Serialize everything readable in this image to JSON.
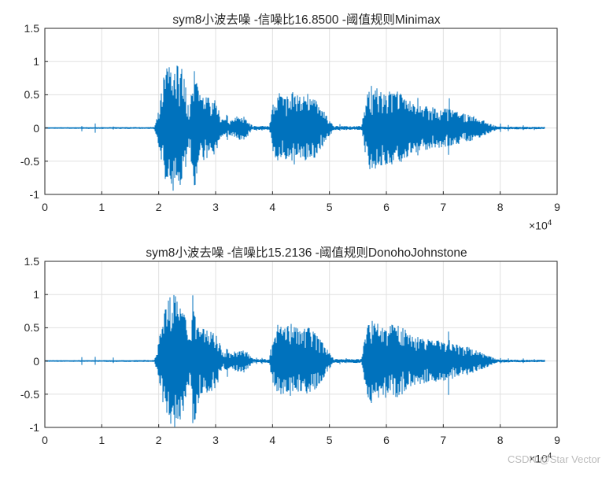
{
  "figure": {
    "background": "#ffffff",
    "watermark": {
      "text": "CSDN @Star Vector",
      "color": "#bcbcbc"
    }
  },
  "chart_data": [
    {
      "type": "line",
      "subtype": "audio-waveform",
      "title": "sym8小波去噪 -信噪比16.8500 -阈值规则Minimax",
      "wavelet": "sym8",
      "snr": "16.8500",
      "threshold_rule": "Minimax",
      "line_color": "#0072BD",
      "grid_color": "#e0e0e0",
      "axis_color": "#262626",
      "xlim": [
        0,
        90000
      ],
      "ylim": [
        -1,
        1.5
      ],
      "x_ticks": [
        "0",
        "1",
        "2",
        "3",
        "4",
        "5",
        "6",
        "7",
        "8",
        "9"
      ],
      "x_tick_values": [
        0,
        1,
        2,
        3,
        4,
        5,
        6,
        7,
        8,
        9
      ],
      "y_ticks": [
        "-1",
        "-0.5",
        "0",
        "0.5",
        "1",
        "1.5"
      ],
      "y_tick_values": [
        -1,
        -0.5,
        0,
        0.5,
        1,
        1.5
      ],
      "x_multiplier": "×10",
      "x_multiplier_exp": "4",
      "grid": true,
      "seed": 11,
      "signal_end": 8.78,
      "envelope": [
        [
          0,
          0.012
        ],
        [
          1.92,
          0.015
        ],
        [
          1.96,
          0.12
        ],
        [
          2.0,
          0.3
        ],
        [
          2.05,
          0.55
        ],
        [
          2.1,
          0.85
        ],
        [
          2.18,
          0.95
        ],
        [
          2.28,
          1.0
        ],
        [
          2.4,
          0.92
        ],
        [
          2.46,
          0.75
        ],
        [
          2.52,
          0.35
        ],
        [
          2.57,
          0.5
        ],
        [
          2.6,
          1.03
        ],
        [
          2.66,
          0.85
        ],
        [
          2.72,
          0.5
        ],
        [
          2.85,
          0.48
        ],
        [
          2.98,
          0.44
        ],
        [
          3.06,
          0.3
        ],
        [
          3.12,
          0.13
        ],
        [
          3.3,
          0.12
        ],
        [
          3.38,
          0.18
        ],
        [
          3.52,
          0.18
        ],
        [
          3.6,
          0.08
        ],
        [
          3.66,
          0.03
        ],
        [
          3.94,
          0.03
        ],
        [
          4.0,
          0.35
        ],
        [
          4.08,
          0.55
        ],
        [
          4.22,
          0.5
        ],
        [
          4.36,
          0.58
        ],
        [
          4.5,
          0.45
        ],
        [
          4.62,
          0.52
        ],
        [
          4.74,
          0.45
        ],
        [
          4.88,
          0.28
        ],
        [
          5.0,
          0.12
        ],
        [
          5.08,
          0.03
        ],
        [
          5.56,
          0.03
        ],
        [
          5.64,
          0.45
        ],
        [
          5.72,
          0.65
        ],
        [
          5.88,
          0.58
        ],
        [
          6.05,
          0.55
        ],
        [
          6.22,
          0.55
        ],
        [
          6.35,
          0.48
        ],
        [
          6.45,
          0.38
        ],
        [
          6.6,
          0.35
        ],
        [
          6.8,
          0.32
        ],
        [
          7.0,
          0.3
        ],
        [
          7.2,
          0.26
        ],
        [
          7.4,
          0.22
        ],
        [
          7.6,
          0.16
        ],
        [
          7.75,
          0.1
        ],
        [
          7.88,
          0.05
        ],
        [
          7.95,
          0.022
        ],
        [
          8.78,
          0.018
        ],
        [
          8.8,
          0
        ]
      ],
      "spikes": [
        [
          0.65,
          0.06
        ],
        [
          0.88,
          0.08
        ],
        [
          1.2,
          0.05
        ],
        [
          3.2,
          0.22
        ],
        [
          3.72,
          0.06
        ],
        [
          3.82,
          0.05
        ],
        [
          5.18,
          0.06
        ],
        [
          5.3,
          0.05
        ],
        [
          6.55,
          0.5
        ],
        [
          6.9,
          0.48
        ],
        [
          7.1,
          0.45
        ],
        [
          8.0,
          0.06
        ],
        [
          8.14,
          0.05
        ],
        [
          8.4,
          0.05
        ],
        [
          8.6,
          0.04
        ]
      ]
    },
    {
      "type": "line",
      "subtype": "audio-waveform",
      "title": "sym8小波去噪 -信噪比15.2136 -阈值规则DonohoJohnstone",
      "wavelet": "sym8",
      "snr": "15.2136",
      "threshold_rule": "DonohoJohnstone",
      "line_color": "#0072BD",
      "grid_color": "#e0e0e0",
      "axis_color": "#262626",
      "xlim": [
        0,
        90000
      ],
      "ylim": [
        -1,
        1.5
      ],
      "x_ticks": [
        "0",
        "1",
        "2",
        "3",
        "4",
        "5",
        "6",
        "7",
        "8",
        "9"
      ],
      "x_tick_values": [
        0,
        1,
        2,
        3,
        4,
        5,
        6,
        7,
        8,
        9
      ],
      "y_ticks": [
        "-1",
        "-0.5",
        "0",
        "0.5",
        "1",
        "1.5"
      ],
      "y_tick_values": [
        -1,
        -0.5,
        0,
        0.5,
        1,
        1.5
      ],
      "x_multiplier": "×10",
      "x_multiplier_exp": "4",
      "grid": true,
      "seed": 23,
      "signal_end": 8.78,
      "envelope": [
        [
          0,
          0.012
        ],
        [
          1.92,
          0.015
        ],
        [
          1.96,
          0.12
        ],
        [
          2.0,
          0.3
        ],
        [
          2.05,
          0.55
        ],
        [
          2.1,
          0.85
        ],
        [
          2.18,
          0.95
        ],
        [
          2.28,
          1.0
        ],
        [
          2.4,
          0.92
        ],
        [
          2.46,
          0.75
        ],
        [
          2.52,
          0.35
        ],
        [
          2.57,
          0.5
        ],
        [
          2.6,
          1.03
        ],
        [
          2.66,
          0.85
        ],
        [
          2.72,
          0.5
        ],
        [
          2.85,
          0.48
        ],
        [
          2.98,
          0.44
        ],
        [
          3.06,
          0.3
        ],
        [
          3.12,
          0.13
        ],
        [
          3.3,
          0.12
        ],
        [
          3.38,
          0.18
        ],
        [
          3.52,
          0.18
        ],
        [
          3.6,
          0.08
        ],
        [
          3.66,
          0.03
        ],
        [
          3.94,
          0.03
        ],
        [
          4.0,
          0.35
        ],
        [
          4.08,
          0.55
        ],
        [
          4.22,
          0.5
        ],
        [
          4.36,
          0.58
        ],
        [
          4.5,
          0.45
        ],
        [
          4.62,
          0.52
        ],
        [
          4.74,
          0.45
        ],
        [
          4.88,
          0.28
        ],
        [
          5.0,
          0.12
        ],
        [
          5.08,
          0.03
        ],
        [
          5.56,
          0.03
        ],
        [
          5.64,
          0.45
        ],
        [
          5.72,
          0.65
        ],
        [
          5.88,
          0.58
        ],
        [
          6.05,
          0.55
        ],
        [
          6.22,
          0.55
        ],
        [
          6.35,
          0.48
        ],
        [
          6.45,
          0.38
        ],
        [
          6.6,
          0.35
        ],
        [
          6.8,
          0.32
        ],
        [
          7.0,
          0.3
        ],
        [
          7.2,
          0.26
        ],
        [
          7.4,
          0.22
        ],
        [
          7.6,
          0.16
        ],
        [
          7.75,
          0.1
        ],
        [
          7.88,
          0.05
        ],
        [
          7.95,
          0.022
        ],
        [
          8.78,
          0.018
        ],
        [
          8.8,
          0
        ]
      ],
      "spikes": [
        [
          0.65,
          0.055
        ],
        [
          0.88,
          0.075
        ],
        [
          1.2,
          0.05
        ],
        [
          3.2,
          0.22
        ],
        [
          3.72,
          0.055
        ],
        [
          3.82,
          0.05
        ],
        [
          5.18,
          0.055
        ],
        [
          5.3,
          0.05
        ],
        [
          6.55,
          0.5
        ],
        [
          6.9,
          0.48
        ],
        [
          7.1,
          0.45
        ],
        [
          8.0,
          0.055
        ],
        [
          8.14,
          0.05
        ],
        [
          8.4,
          0.05
        ],
        [
          8.6,
          0.04
        ]
      ]
    }
  ]
}
